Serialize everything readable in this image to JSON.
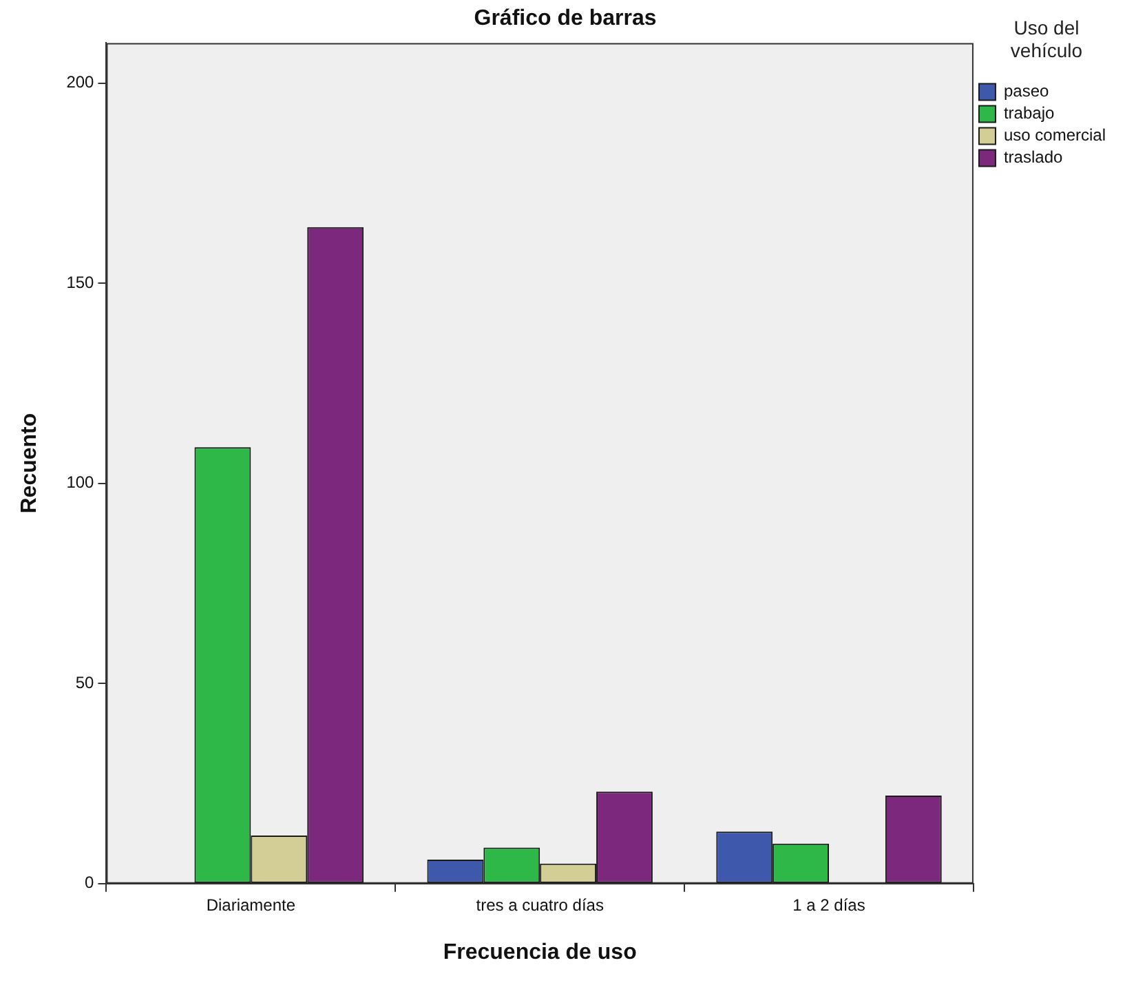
{
  "chart_data": {
    "type": "bar",
    "title": "Gráfico de barras",
    "xlabel": "Frecuencia de uso",
    "ylabel": "Recuento",
    "legend_title": "Uso del vehículo",
    "categories": [
      "Diariamente",
      "tres a cuatro días",
      "1 a 2 días"
    ],
    "series": [
      {
        "name": "paseo",
        "color": "#3e58ac",
        "values": [
          0,
          6,
          13
        ]
      },
      {
        "name": "trabajo",
        "color": "#2eb848",
        "values": [
          109,
          9,
          10
        ]
      },
      {
        "name": "uso comercial",
        "color": "#d2ce96",
        "values": [
          12,
          5,
          0
        ]
      },
      {
        "name": "traslado",
        "color": "#7b287d",
        "values": [
          164,
          23,
          22
        ]
      }
    ],
    "ylim": [
      0,
      210
    ],
    "yticks": [
      0,
      50,
      100,
      150,
      200
    ],
    "grid": false,
    "legend": "top right"
  }
}
